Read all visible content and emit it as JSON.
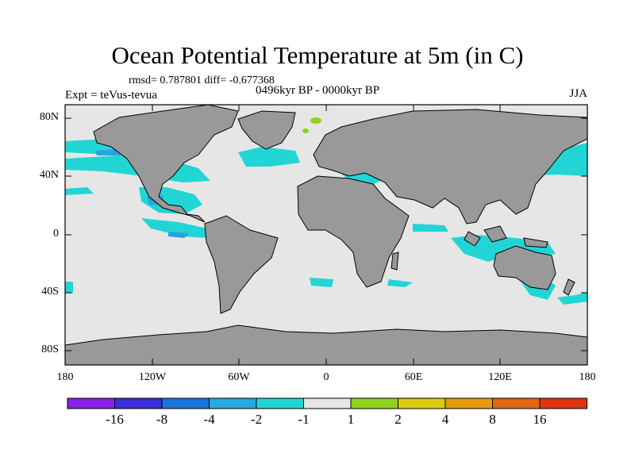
{
  "map": {
    "title": "Ocean Potential Temperature at 5m (in C)",
    "stats": "rmsd= 0.787801 diff= -0.677368",
    "experiment": "Expt = teVus-tevua",
    "period": "0496kyr BP - 0000kyr BP",
    "season": "JJA",
    "lat_labels": [
      "80N",
      "40N",
      "0",
      "40S",
      "80S"
    ],
    "lon_labels": [
      "180",
      "120W",
      "60W",
      "0",
      "60E",
      "120E",
      "180"
    ],
    "colors": {
      "ocean_neutral": "#e6e6e6",
      "land": "#999999",
      "cyan": "#22d5d5",
      "blue": "#27a3e0",
      "green": "#8fd21c"
    }
  },
  "colorbar": {
    "labels": [
      "-16",
      "-8",
      "-4",
      "-2",
      "-1",
      "1",
      "2",
      "4",
      "8",
      "16"
    ],
    "colors": [
      "#8a21e6",
      "#3b30d8",
      "#1775dd",
      "#25aadf",
      "#22d5d5",
      "#e6e6e6",
      "#8fd21c",
      "#d9cc12",
      "#e69b0f",
      "#e36614",
      "#de3412"
    ]
  }
}
